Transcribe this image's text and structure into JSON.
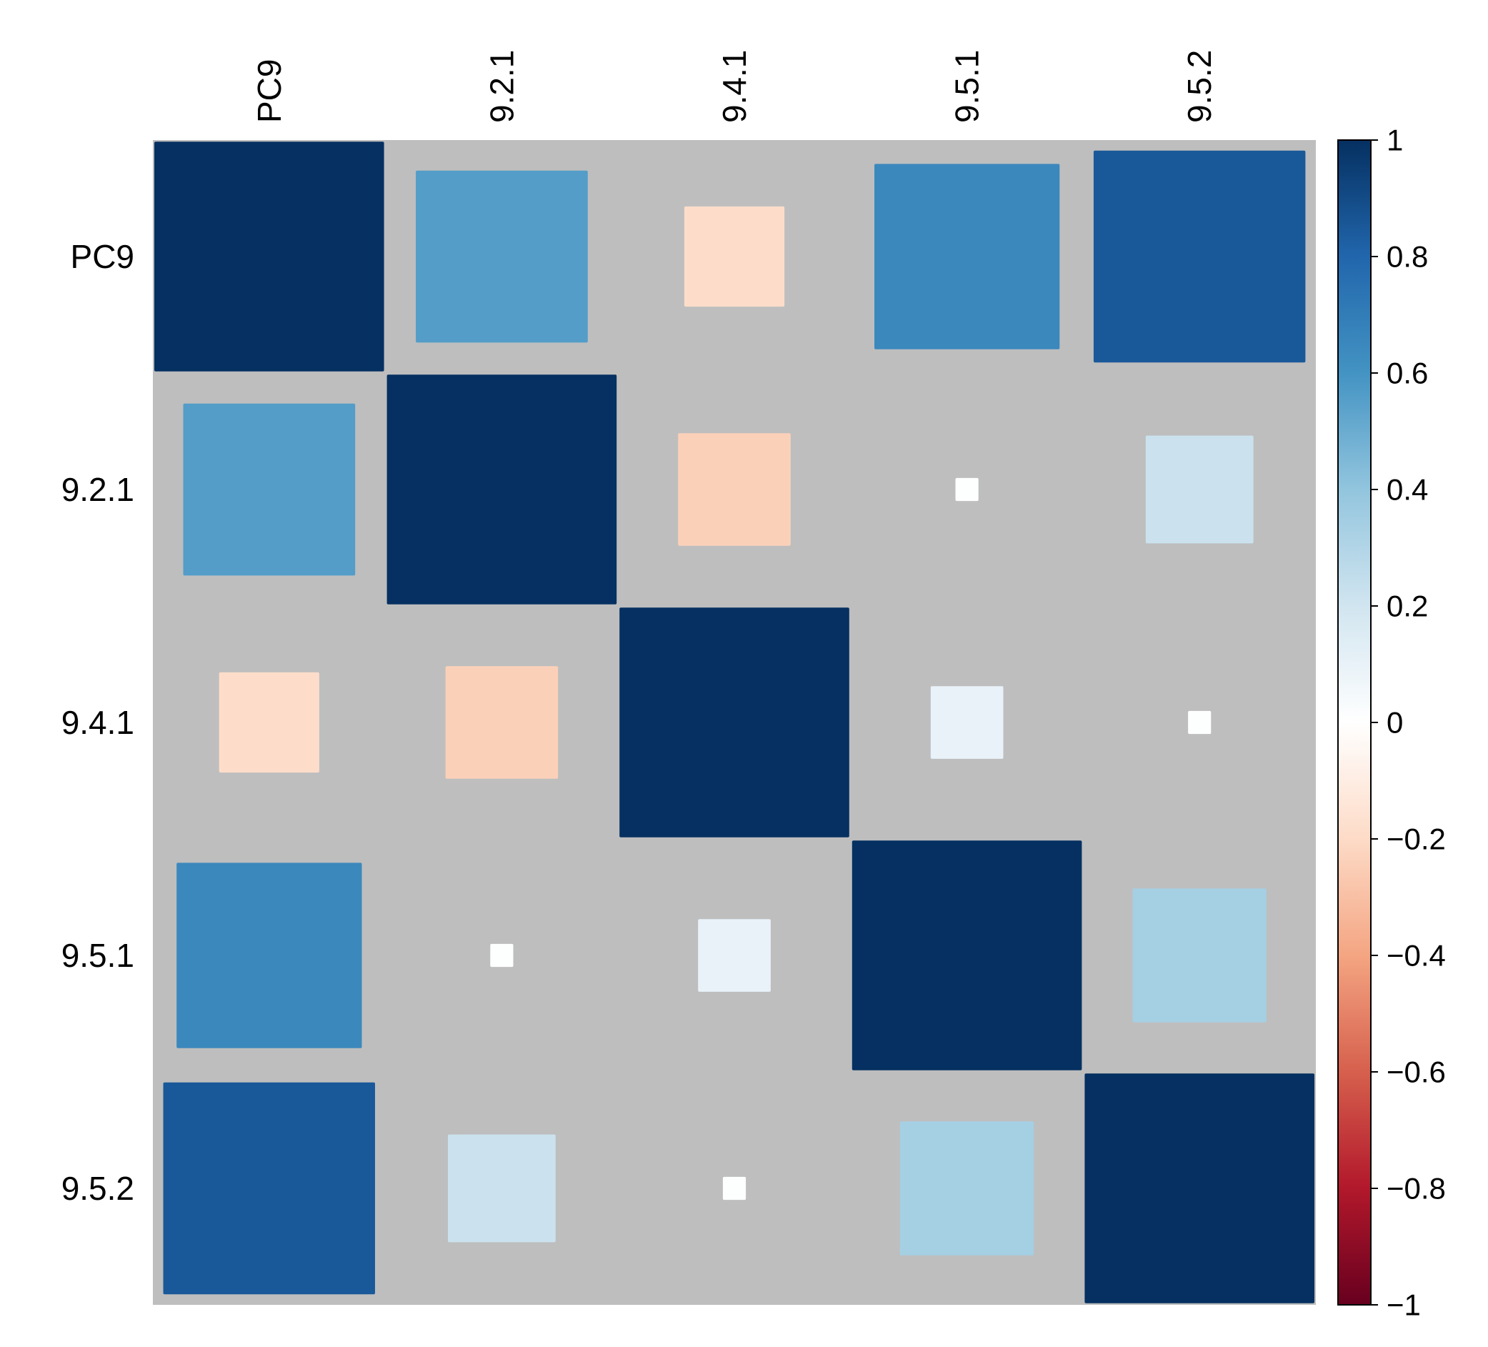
{
  "chart_data": {
    "type": "heatmap",
    "subtype": "correlation-matrix-square",
    "variables": [
      "PC9",
      "9.2.1",
      "9.4.1",
      "9.5.1",
      "9.5.2"
    ],
    "row_labels": [
      "PC9",
      "9.2.1",
      "9.4.1",
      "9.5.1",
      "9.5.2"
    ],
    "col_labels": [
      "PC9",
      "9.2.1",
      "9.4.1",
      "9.5.1",
      "9.5.2"
    ],
    "matrix": [
      [
        1.0,
        0.56,
        -0.19,
        0.65,
        0.85
      ],
      [
        0.56,
        1.0,
        -0.24,
        0.01,
        0.22
      ],
      [
        -0.19,
        -0.24,
        1.0,
        0.1,
        0.01
      ],
      [
        0.65,
        0.01,
        0.1,
        1.0,
        0.34
      ],
      [
        0.85,
        0.22,
        0.01,
        0.34,
        1.0
      ]
    ],
    "colorbar": {
      "min": -1,
      "max": 1,
      "ticks": [
        "1",
        "0.8",
        "0.6",
        "0.4",
        "0.2",
        "0",
        "−0.2",
        "−0.4",
        "−0.6",
        "−0.8",
        "−1"
      ],
      "tick_values": [
        1,
        0.8,
        0.6,
        0.4,
        0.2,
        0,
        -0.2,
        -0.4,
        -0.6,
        -0.8,
        -1
      ],
      "colors": [
        "#67001F",
        "#B2182B",
        "#D6604D",
        "#F4A582",
        "#FDDBC7",
        "#FFFFFF",
        "#D1E5F0",
        "#92C5DE",
        "#4393C3",
        "#2166AC",
        "#053061"
      ]
    },
    "background_color": "#BEBEBE",
    "title": "",
    "xlabel": "",
    "ylabel": ""
  }
}
